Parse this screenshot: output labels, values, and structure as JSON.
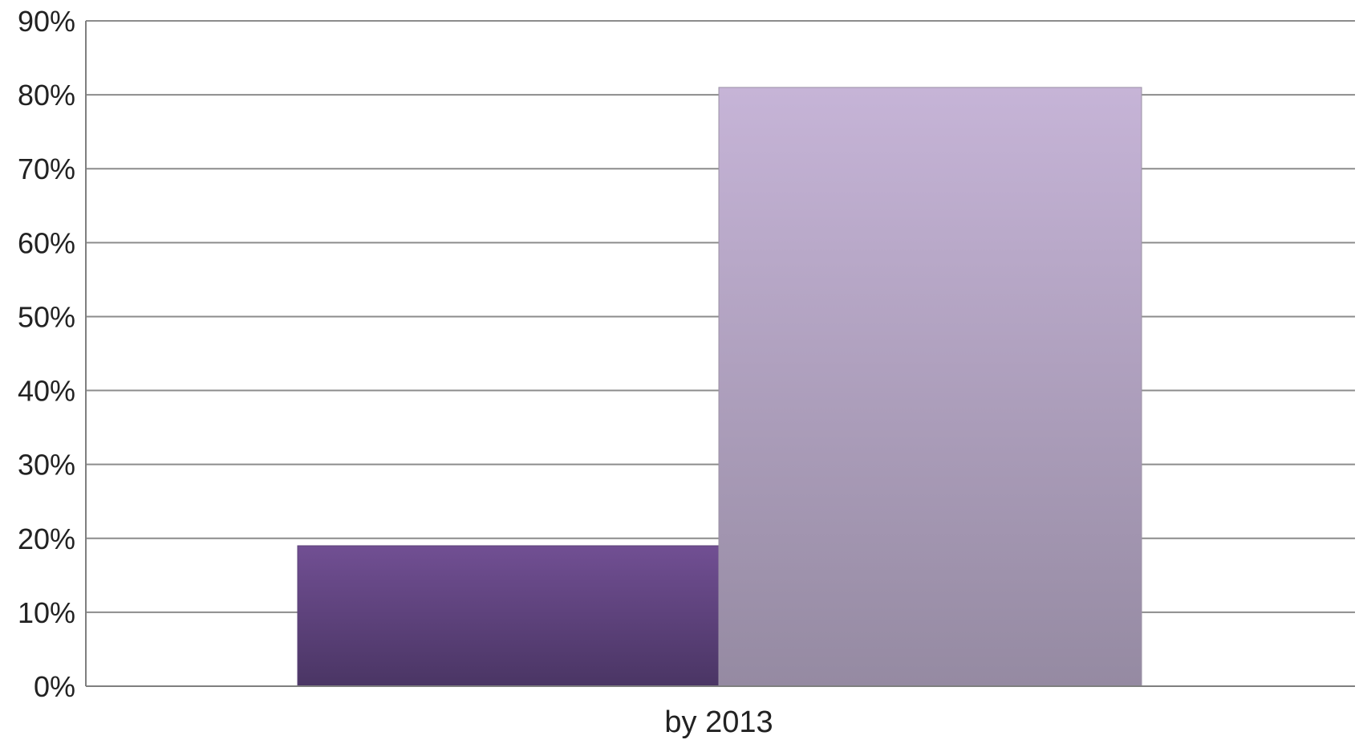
{
  "chart_data": {
    "type": "bar",
    "categories": [
      "by 2013"
    ],
    "series": [
      {
        "values": [
          19
        ]
      },
      {
        "values": [
          81
        ]
      }
    ],
    "ylim": [
      0,
      90
    ],
    "yticks": [
      0,
      10,
      20,
      30,
      40,
      50,
      60,
      70,
      80,
      90
    ],
    "ytick_labels": [
      "0%",
      "10%",
      "20%",
      "30%",
      "40%",
      "50%",
      "60%",
      "70%",
      "80%",
      "90%"
    ],
    "grid": true,
    "legend": "none",
    "colors": {
      "series_1_top": "#714f93",
      "series_1_bottom": "#4a3564",
      "series_2_top": "#c6b4d7",
      "series_2_bottom": "#958aa2",
      "grid": "#8c8c8c",
      "axis": "#7f7f7f"
    }
  }
}
